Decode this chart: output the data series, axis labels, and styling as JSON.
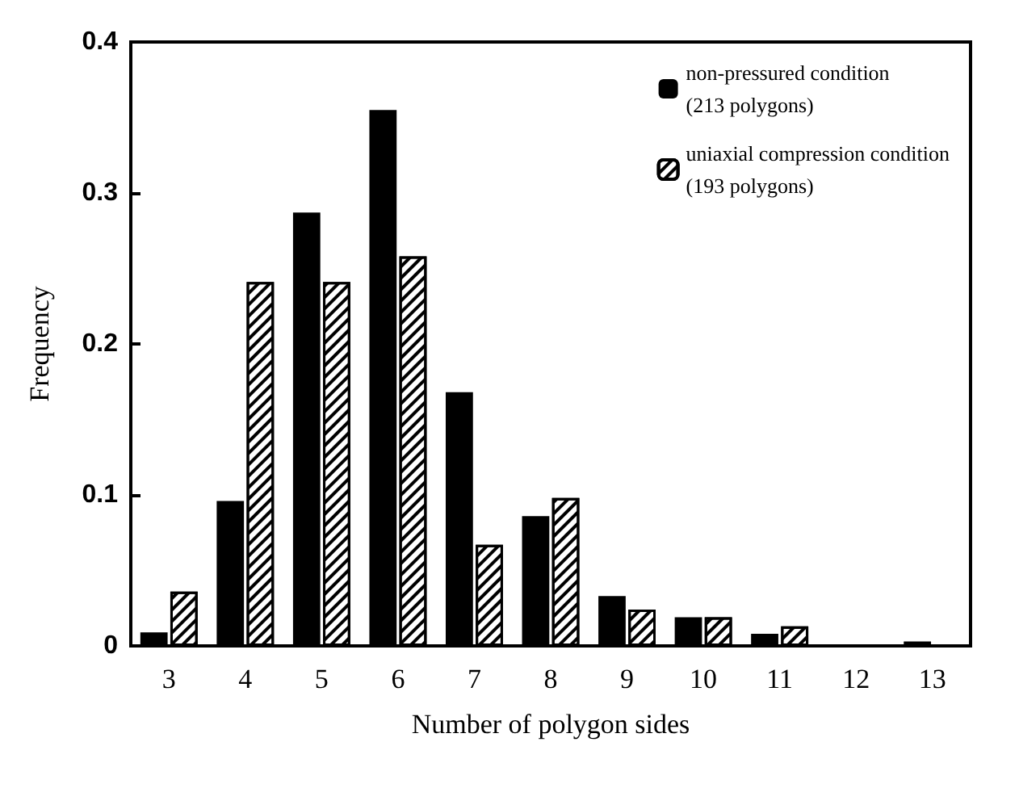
{
  "chart_data": {
    "type": "bar",
    "xlabel": "Number of polygon sides",
    "ylabel": "Frequency",
    "categories": [
      "3",
      "4",
      "5",
      "6",
      "7",
      "8",
      "9",
      "10",
      "11",
      "12",
      "13"
    ],
    "series": [
      {
        "name": "non-pressured condition\n(213 polygons)",
        "color": "#000000",
        "values": [
          0.009,
          0.096,
          0.287,
          0.355,
          0.168,
          0.086,
          0.033,
          0.019,
          0.008,
          0,
          0.003
        ]
      },
      {
        "name": "uniaxial compression condition\n(193 polygons)",
        "color": "#ffffff",
        "values": [
          0.036,
          0.241,
          0.241,
          0.258,
          0.067,
          0.098,
          0.024,
          0.019,
          0.013,
          0,
          0
        ]
      }
    ],
    "ylim": [
      0,
      0.4
    ],
    "yticks": [
      0,
      0.1,
      0.2,
      0.3,
      0.4
    ],
    "grid": false,
    "legend": "top right"
  }
}
